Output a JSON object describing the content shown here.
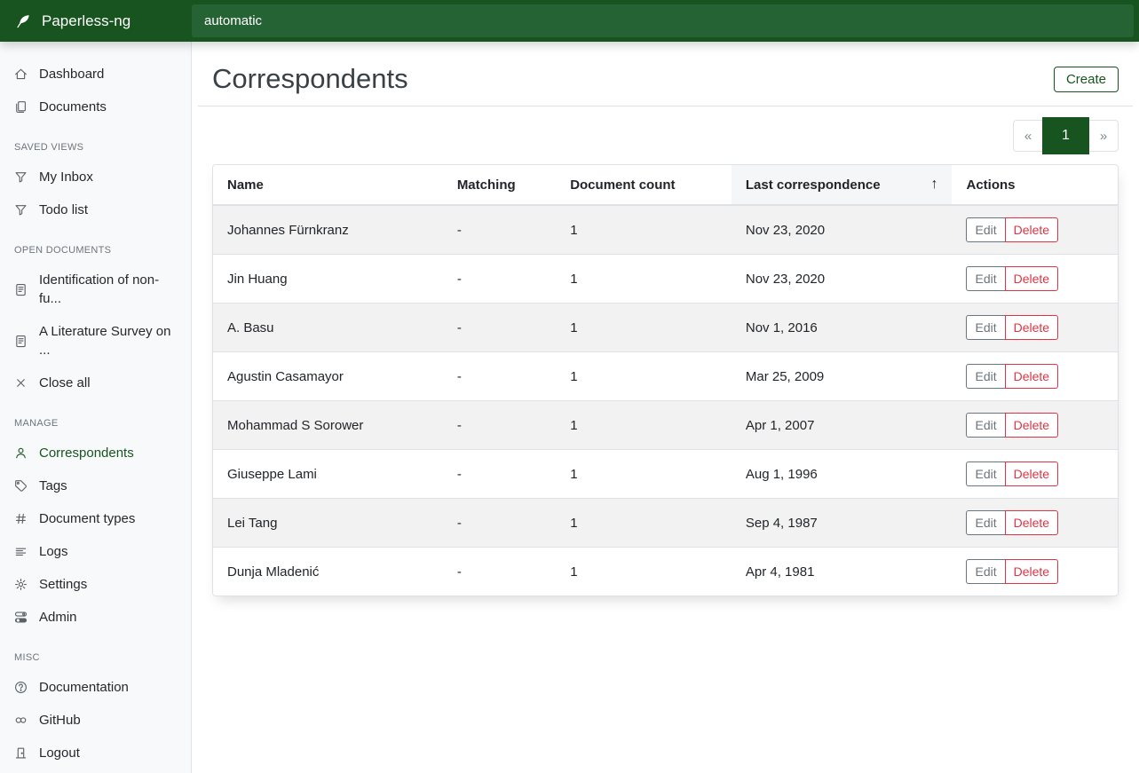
{
  "app": {
    "brand": "Paperless-ng",
    "search_value": "automatic"
  },
  "colors": {
    "primary": "#17541f",
    "search_bg": "#266334",
    "danger": "#dc3545",
    "secondary": "#6c757d"
  },
  "sidebar": {
    "primary": [
      {
        "label": "Dashboard",
        "icon": "house"
      },
      {
        "label": "Documents",
        "icon": "files"
      }
    ],
    "sections": [
      {
        "heading": "SAVED VIEWS",
        "items": [
          {
            "label": "My Inbox",
            "icon": "funnel"
          },
          {
            "label": "Todo list",
            "icon": "funnel"
          }
        ]
      },
      {
        "heading": "OPEN DOCUMENTS",
        "items": [
          {
            "label": "Identification of non-fu...",
            "icon": "file-text"
          },
          {
            "label": "A Literature Survey on ...",
            "icon": "file-text"
          },
          {
            "label": "Close all",
            "icon": "x"
          }
        ]
      },
      {
        "heading": "MANAGE",
        "items": [
          {
            "label": "Correspondents",
            "icon": "person",
            "active": true
          },
          {
            "label": "Tags",
            "icon": "tag"
          },
          {
            "label": "Document types",
            "icon": "hash"
          },
          {
            "label": "Logs",
            "icon": "text-left"
          },
          {
            "label": "Settings",
            "icon": "gear"
          },
          {
            "label": "Admin",
            "icon": "toggles"
          }
        ]
      },
      {
        "heading": "MISC",
        "items": [
          {
            "label": "Documentation",
            "icon": "question-circle"
          },
          {
            "label": "GitHub",
            "icon": "link"
          },
          {
            "label": "Logout",
            "icon": "door"
          }
        ]
      }
    ]
  },
  "page": {
    "title": "Correspondents",
    "create_label": "Create"
  },
  "pagination": {
    "prev": "«",
    "current": "1",
    "next": "»"
  },
  "table": {
    "headers": {
      "name": "Name",
      "matching": "Matching",
      "document_count": "Document count",
      "last_correspondence": "Last correspondence",
      "actions": "Actions"
    },
    "sort_icon": "↑",
    "actions": {
      "edit": "Edit",
      "delete": "Delete"
    },
    "rows": [
      {
        "name": "Johannes Fürnkranz",
        "matching": "-",
        "document_count": "1",
        "last_correspondence": "Nov 23, 2020"
      },
      {
        "name": "Jin Huang",
        "matching": "-",
        "document_count": "1",
        "last_correspondence": "Nov 23, 2020"
      },
      {
        "name": "A. Basu",
        "matching": "-",
        "document_count": "1",
        "last_correspondence": "Nov 1, 2016"
      },
      {
        "name": "Agustin Casamayor",
        "matching": "-",
        "document_count": "1",
        "last_correspondence": "Mar 25, 2009"
      },
      {
        "name": "Mohammad S Sorower",
        "matching": "-",
        "document_count": "1",
        "last_correspondence": "Apr 1, 2007"
      },
      {
        "name": "Giuseppe Lami",
        "matching": "-",
        "document_count": "1",
        "last_correspondence": "Aug 1, 1996"
      },
      {
        "name": "Lei Tang",
        "matching": "-",
        "document_count": "1",
        "last_correspondence": "Sep 4, 1987"
      },
      {
        "name": "Dunja Mladenić",
        "matching": "-",
        "document_count": "1",
        "last_correspondence": "Apr 4, 1981"
      }
    ]
  }
}
